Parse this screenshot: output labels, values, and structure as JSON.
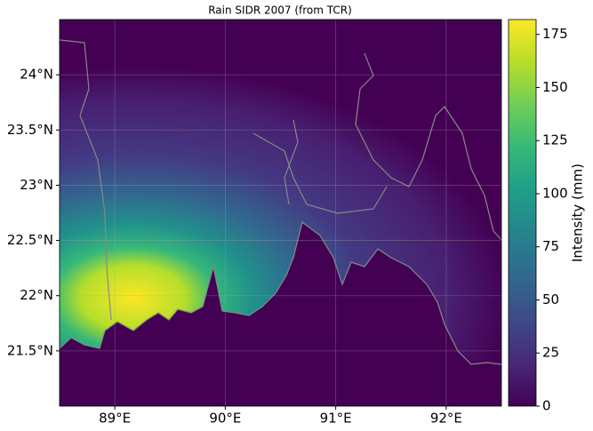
{
  "chart_data": {
    "type": "heatmap-map",
    "title": "Rain SIDR 2007 (from TCR)",
    "xlim": [
      88.5,
      92.5
    ],
    "xticks": [
      {
        "value": 89,
        "label": "89°E"
      },
      {
        "value": 90,
        "label": "90°E"
      },
      {
        "value": 91,
        "label": "91°E"
      },
      {
        "value": 92,
        "label": "92°E"
      }
    ],
    "ylim": [
      21,
      24.5
    ],
    "yticks": [
      {
        "value": 21.5,
        "label": "21.5°N"
      },
      {
        "value": 22,
        "label": "22°N"
      },
      {
        "value": 22.5,
        "label": "22.5°N"
      },
      {
        "value": 23,
        "label": "23°N"
      },
      {
        "value": 23.5,
        "label": "23.5°N"
      },
      {
        "value": 24,
        "label": "24°N"
      }
    ],
    "grid": true,
    "colormap": "viridis",
    "colorbar_label": "Intensity (mm)",
    "clim": [
      0,
      182
    ],
    "colorbar_ticks": [
      0,
      25,
      50,
      75,
      100,
      125,
      150,
      175
    ]
  }
}
